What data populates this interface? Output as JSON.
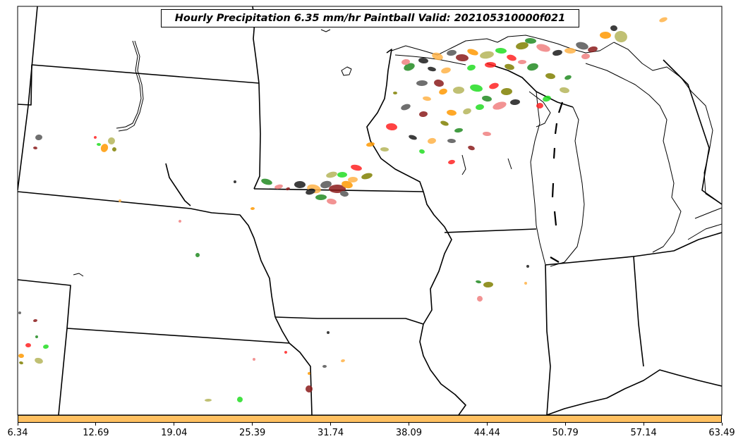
{
  "title": "Hourly Precipitation 6.35 mm/hr Paintball Valid: 202105310000f021",
  "colorbar": {
    "color": "#ffc061",
    "ticks": [
      "6.34",
      "12.69",
      "19.04",
      "25.39",
      "31.74",
      "38.09",
      "44.44",
      "50.79",
      "57.14",
      "63.49"
    ]
  },
  "paint_colors": [
    "#ff2222",
    "#ff9900",
    "#ffb347",
    "#228b22",
    "#22dd22",
    "#8b1a1a",
    "#1a1a1a",
    "#808000",
    "#b5b55a",
    "#555555",
    "#f08080"
  ]
}
